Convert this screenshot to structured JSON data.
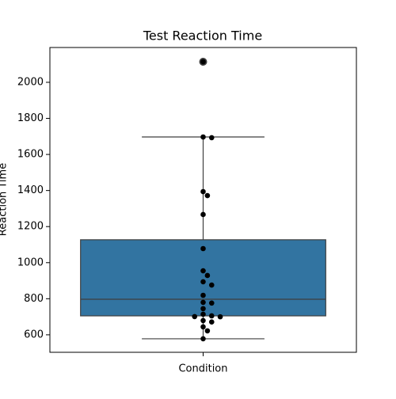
{
  "chart_data": {
    "type": "box",
    "title": "Test Reaction Time",
    "ylabel": "Reaction Time",
    "categories": [
      "Condition"
    ],
    "box": {
      "whislo": 578,
      "q1": 705,
      "median": 797,
      "q3": 1127,
      "whishi": 1697,
      "fliers": [
        2114
      ]
    },
    "color": "#3274a1",
    "points": [
      2114,
      1697,
      1693,
      1394,
      1372,
      1267,
      1078,
      955,
      929,
      894,
      876,
      819,
      780,
      776,
      745,
      714,
      705,
      701,
      700,
      679,
      671,
      644,
      622,
      578
    ],
    "point_color": "#000000",
    "ylim": [
      503,
      2193
    ],
    "yticks": [
      600,
      800,
      1000,
      1200,
      1400,
      1600,
      1800,
      2000
    ],
    "grid": false
  }
}
